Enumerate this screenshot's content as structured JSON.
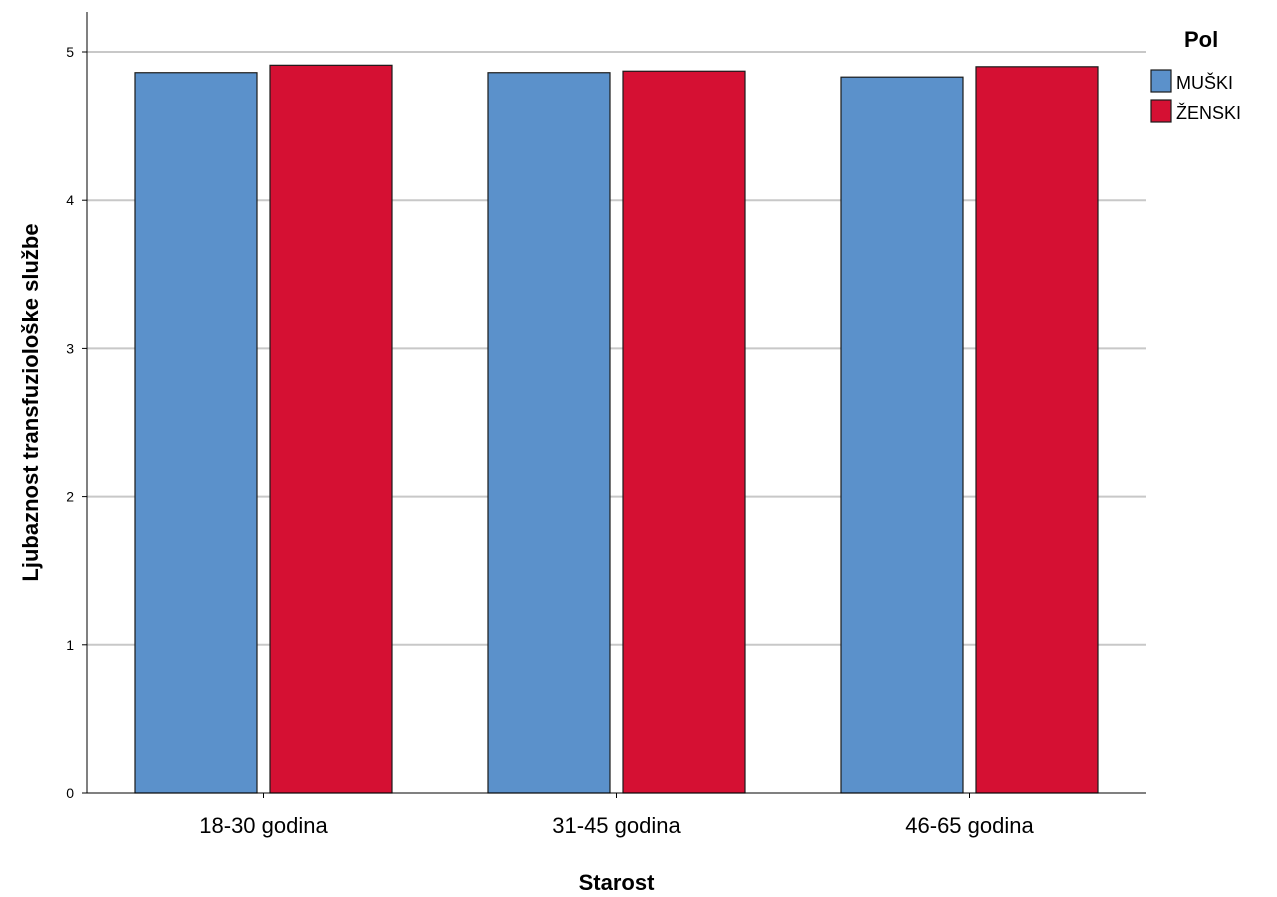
{
  "chart_data": {
    "type": "bar",
    "categories": [
      "18-30 godina",
      "31-45 godina",
      "46-65 godina"
    ],
    "series": [
      {
        "name": "MUŠKI",
        "values": [
          4.86,
          4.86,
          4.83
        ],
        "color": "#5b91cb"
      },
      {
        "name": "ŽENSKI",
        "values": [
          4.91,
          4.87,
          4.9
        ],
        "color": "#d51033"
      }
    ],
    "xlabel": "Starost",
    "ylabel": "Ljubaznost transfuziološke službe",
    "ylim": [
      0,
      5
    ],
    "yticks": [
      "0",
      "1",
      "2",
      "3",
      "4",
      "5"
    ],
    "legend_title": "Pol",
    "legend_position": "top-right",
    "grid": true
  }
}
